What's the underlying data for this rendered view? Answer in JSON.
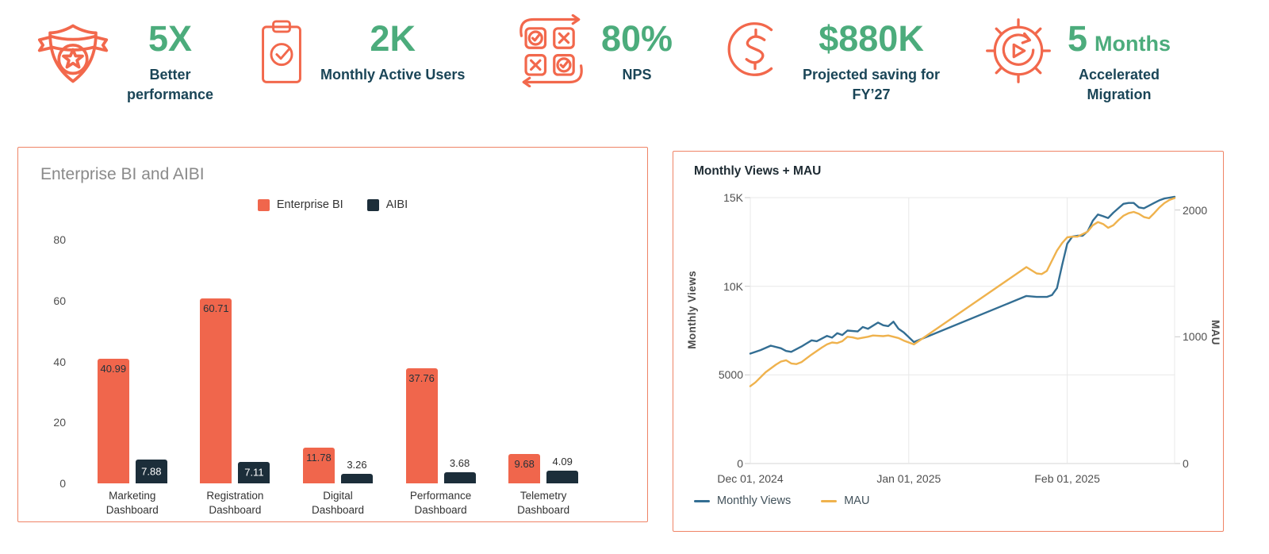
{
  "colors": {
    "accent_orange": "#F2684C",
    "accent_green": "#4CAC7C",
    "navy_text": "#1A4557",
    "panel_border": "#EF8466",
    "title_gray": "#8A8A8A",
    "dark_navy": "#1C2E3A",
    "line_blue": "#336E93",
    "line_yellow": "#EFB24D",
    "axis_text": "#4F4F4F",
    "grid_line": "#E8E8E8"
  },
  "stats": [
    {
      "icon": "badge-icon",
      "value": "5X",
      "value_suffix": "",
      "label_lines": [
        "Better",
        "performance"
      ]
    },
    {
      "icon": "clipboard-icon",
      "value": "2K",
      "value_suffix": "",
      "label_lines": [
        "Monthly Active Users"
      ]
    },
    {
      "icon": "survey-icon",
      "value": "80%",
      "value_suffix": "",
      "label_lines": [
        "NPS"
      ]
    },
    {
      "icon": "dollar-icon",
      "value": "$880K",
      "value_suffix": "",
      "label_lines": [
        "Projected saving for",
        "FY’27"
      ]
    },
    {
      "icon": "gear-arrow-icon",
      "value": "5",
      "value_suffix": "Months",
      "label_lines": [
        "Accelerated",
        "Migration"
      ]
    }
  ],
  "chart_data": [
    {
      "type": "bar",
      "title": "Enterprise BI and AIBI",
      "categories": [
        "Marketing Dashboard",
        "Registration Dashboard",
        "Digital Dashboard",
        "Performance Dashboard",
        "Telemetry Dashboard"
      ],
      "series": [
        {
          "name": "Enterprise BI",
          "color": "#F0664C",
          "values": [
            40.99,
            60.71,
            11.78,
            37.76,
            9.68
          ]
        },
        {
          "name": "AIBI",
          "color": "#1C2E3A",
          "values": [
            7.88,
            7.11,
            3.26,
            3.68,
            4.09
          ]
        }
      ],
      "ylim": [
        0,
        80
      ],
      "yticks": [
        0,
        20,
        40,
        60,
        80
      ],
      "grid": false,
      "legend_position": "top-center"
    },
    {
      "type": "line",
      "title": "Monthly Views + MAU",
      "x_axis": {
        "total_days": 83,
        "ticks": [
          {
            "day": 0,
            "label": "Dec 01, 2024"
          },
          {
            "day": 31,
            "label": "Jan 01, 2025"
          },
          {
            "day": 62,
            "label": "Feb 01, 2025"
          }
        ]
      },
      "y_left": {
        "label": "Monthly Views",
        "max": 15000,
        "tick_values": [
          0,
          5000,
          10000,
          15000
        ],
        "tick_labels": [
          "0",
          "5000",
          "10K",
          "15K"
        ]
      },
      "y_right": {
        "label": "MAU",
        "max": 2098,
        "tick_values": [
          0,
          1000,
          2000
        ],
        "tick_labels": [
          "0",
          "1000",
          "2000"
        ]
      },
      "grid": true,
      "legend_position": "bottom-left",
      "series": [
        {
          "name": "Monthly Views",
          "color": "#336E93",
          "axis": "left",
          "points": [
            [
              0,
              6200
            ],
            [
              2,
              6400
            ],
            [
              4,
              6650
            ],
            [
              6,
              6500
            ],
            [
              7,
              6350
            ],
            [
              8,
              6300
            ],
            [
              10,
              6600
            ],
            [
              12,
              6950
            ],
            [
              13,
              6900
            ],
            [
              15,
              7200
            ],
            [
              16,
              7100
            ],
            [
              17,
              7350
            ],
            [
              18,
              7250
            ],
            [
              19,
              7500
            ],
            [
              21,
              7450
            ],
            [
              22,
              7700
            ],
            [
              23,
              7600
            ],
            [
              25,
              7950
            ],
            [
              26,
              7800
            ],
            [
              27,
              7750
            ],
            [
              28,
              8000
            ],
            [
              29,
              7600
            ],
            [
              30,
              7400
            ],
            [
              32,
              6850
            ],
            [
              54,
              9450
            ],
            [
              56,
              9400
            ],
            [
              58,
              9400
            ],
            [
              59,
              9500
            ],
            [
              60,
              9900
            ],
            [
              61,
              11200
            ],
            [
              62,
              12400
            ],
            [
              63,
              12800
            ],
            [
              64,
              12850
            ],
            [
              65,
              12850
            ],
            [
              66,
              13100
            ],
            [
              67,
              13700
            ],
            [
              68,
              14050
            ],
            [
              69,
              13950
            ],
            [
              70,
              13850
            ],
            [
              71,
              14150
            ],
            [
              72,
              14400
            ],
            [
              73,
              14650
            ],
            [
              74,
              14700
            ],
            [
              75,
              14700
            ],
            [
              76,
              14450
            ],
            [
              77,
              14400
            ],
            [
              78,
              14550
            ],
            [
              79,
              14700
            ],
            [
              80,
              14850
            ],
            [
              81,
              14950
            ],
            [
              82,
              15000
            ],
            [
              83,
              15050
            ]
          ]
        },
        {
          "name": "MAU",
          "color": "#EFB24D",
          "axis": "right",
          "points": [
            [
              0,
              610
            ],
            [
              1,
              640
            ],
            [
              2,
              680
            ],
            [
              3,
              720
            ],
            [
              5,
              780
            ],
            [
              6,
              805
            ],
            [
              7,
              815
            ],
            [
              8,
              790
            ],
            [
              9,
              785
            ],
            [
              10,
              800
            ],
            [
              12,
              860
            ],
            [
              14,
              915
            ],
            [
              15,
              940
            ],
            [
              16,
              955
            ],
            [
              17,
              950
            ],
            [
              18,
              965
            ],
            [
              19,
              1000
            ],
            [
              20,
              995
            ],
            [
              21,
              985
            ],
            [
              23,
              1000
            ],
            [
              24,
              1010
            ],
            [
              26,
              1005
            ],
            [
              27,
              1010
            ],
            [
              28,
              1000
            ],
            [
              29,
              990
            ],
            [
              30,
              970
            ],
            [
              32,
              940
            ],
            [
              54,
              1550
            ],
            [
              56,
              1500
            ],
            [
              57,
              1495
            ],
            [
              58,
              1520
            ],
            [
              59,
              1600
            ],
            [
              60,
              1680
            ],
            [
              61,
              1740
            ],
            [
              62,
              1785
            ],
            [
              63,
              1790
            ],
            [
              64,
              1790
            ],
            [
              66,
              1830
            ],
            [
              67,
              1880
            ],
            [
              68,
              1905
            ],
            [
              69,
              1890
            ],
            [
              70,
              1860
            ],
            [
              71,
              1880
            ],
            [
              72,
              1920
            ],
            [
              73,
              1955
            ],
            [
              74,
              1975
            ],
            [
              75,
              1985
            ],
            [
              76,
              1970
            ],
            [
              77,
              1945
            ],
            [
              78,
              1935
            ],
            [
              79,
              1975
            ],
            [
              80,
              2020
            ],
            [
              81,
              2055
            ],
            [
              82,
              2080
            ],
            [
              83,
              2095
            ]
          ]
        }
      ]
    }
  ]
}
